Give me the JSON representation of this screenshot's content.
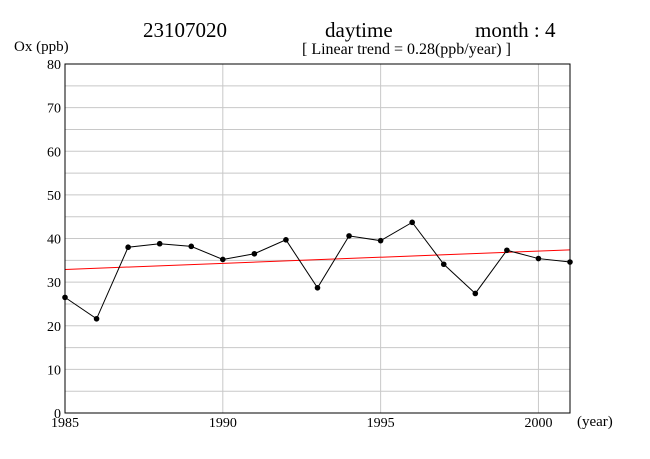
{
  "header": {
    "station": "23107020",
    "period": "daytime",
    "month_label": "month : 4",
    "trend_label": "[ Linear trend = 0.28(ppb/year) ]"
  },
  "chart_data": {
    "type": "line",
    "ylabel": "Ox (ppb)",
    "xlabel": "(year)",
    "xlim": [
      1985,
      2001
    ],
    "ylim": [
      0,
      80
    ],
    "x_ticks": [
      1985,
      1990,
      1995,
      2000
    ],
    "y_ticks": [
      0,
      10,
      20,
      30,
      40,
      50,
      60,
      70,
      80
    ],
    "grid": true,
    "series": [
      {
        "x": [
          1985,
          1986,
          1987,
          1988,
          1989,
          1990,
          1991,
          1992,
          1993,
          1994,
          1995,
          1996,
          1997,
          1998,
          1999,
          2000,
          2001
        ],
        "y": [
          26.5,
          21.6,
          38.0,
          38.8,
          38.2,
          35.2,
          36.5,
          39.7,
          28.7,
          40.6,
          39.5,
          43.7,
          34.1,
          27.4,
          37.3,
          35.4,
          34.6
        ],
        "color": "#000000"
      }
    ],
    "trend": {
      "slope": 0.28,
      "x": [
        1985,
        2001
      ],
      "y": [
        32.9,
        37.4
      ],
      "color": "#ff0000"
    }
  }
}
